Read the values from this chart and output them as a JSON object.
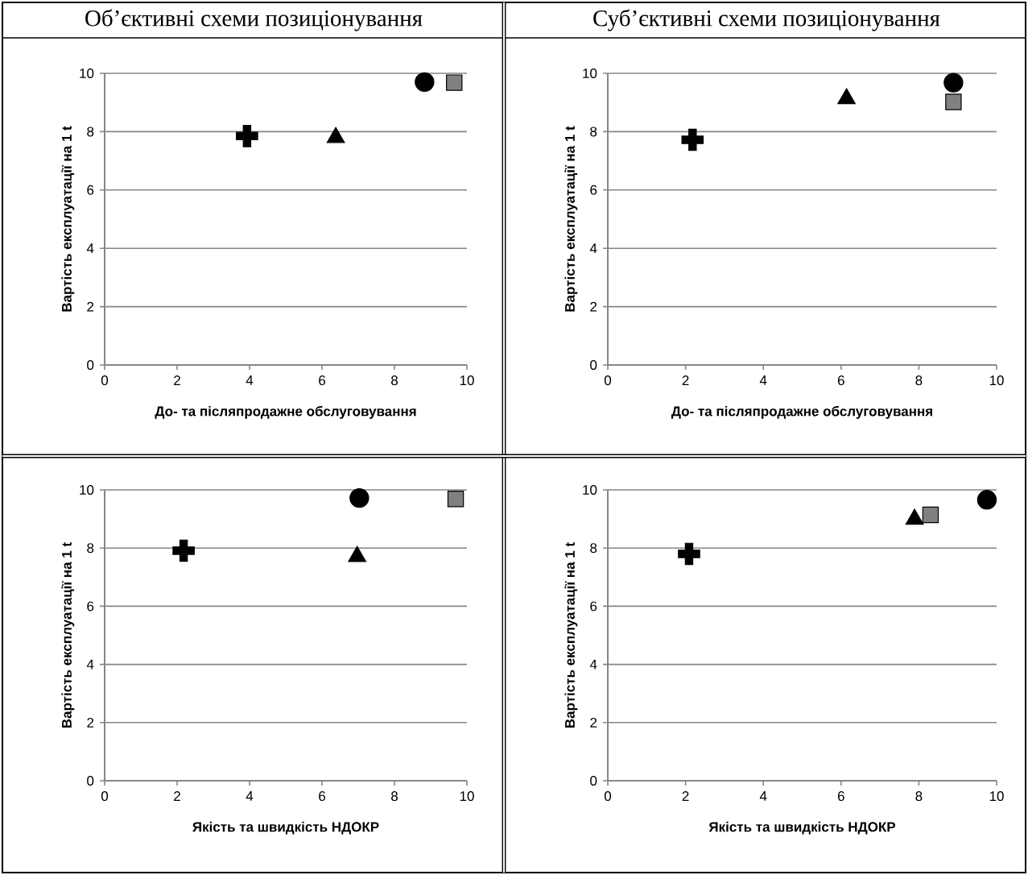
{
  "chart_data": [
    {
      "type": "scatter",
      "title": "Об’єктивні схеми позиціонування",
      "xlabel": "До- та післяпродажне обслуговування",
      "ylabel": "Вартість експлуатації на 1 t",
      "xlim": [
        0,
        10
      ],
      "ylim": [
        0,
        10
      ],
      "xticks": [
        0,
        2,
        4,
        6,
        8,
        10
      ],
      "yticks": [
        0,
        2,
        4,
        6,
        8,
        10
      ],
      "grid": "y",
      "series": [
        {
          "color": "#000000",
          "marker": "cross",
          "x": [
            3.93
          ],
          "values": [
            7.85
          ]
        },
        {
          "color": "#000000",
          "marker": "triangle",
          "x": [
            6.38
          ],
          "values": [
            7.8
          ]
        },
        {
          "color": "#000000",
          "marker": "circle",
          "x": [
            8.83
          ],
          "values": [
            9.7
          ]
        },
        {
          "color": "#808080",
          "marker": "square",
          "x": [
            9.65
          ],
          "values": [
            9.68
          ]
        }
      ]
    },
    {
      "type": "scatter",
      "title": "Суб’єктивні схеми позиціонування",
      "xlabel": "До- та післяпродажне обслуговування",
      "ylabel": "Вартість експлуатації на 1 t",
      "xlim": [
        0,
        10
      ],
      "ylim": [
        0,
        10
      ],
      "xticks": [
        0,
        2,
        4,
        6,
        8,
        10
      ],
      "yticks": [
        0,
        2,
        4,
        6,
        8,
        10
      ],
      "grid": "y",
      "series": [
        {
          "color": "#000000",
          "marker": "cross",
          "x": [
            2.18
          ],
          "values": [
            7.72
          ]
        },
        {
          "color": "#000000",
          "marker": "triangle",
          "x": [
            6.14
          ],
          "values": [
            9.13
          ]
        },
        {
          "color": "#000000",
          "marker": "circle",
          "x": [
            8.89
          ],
          "values": [
            9.68
          ]
        },
        {
          "color": "#808080",
          "marker": "square",
          "x": [
            8.89
          ],
          "values": [
            9.02
          ]
        }
      ]
    },
    {
      "type": "scatter",
      "xlabel": "Якість та швидкість НДОКР",
      "ylabel": "Вартість експлуатації на 1 t",
      "xlim": [
        0,
        10
      ],
      "ylim": [
        0,
        10
      ],
      "xticks": [
        0,
        2,
        4,
        6,
        8,
        10
      ],
      "yticks": [
        0,
        2,
        4,
        6,
        8,
        10
      ],
      "grid": "y",
      "series": [
        {
          "color": "#000000",
          "marker": "cross",
          "x": [
            2.18
          ],
          "values": [
            7.91
          ]
        },
        {
          "color": "#000000",
          "marker": "triangle",
          "x": [
            6.97
          ],
          "values": [
            7.71
          ]
        },
        {
          "color": "#000000",
          "marker": "circle",
          "x": [
            7.03
          ],
          "values": [
            9.72
          ]
        },
        {
          "color": "#808080",
          "marker": "square",
          "x": [
            9.69
          ],
          "values": [
            9.69
          ]
        }
      ]
    },
    {
      "type": "scatter",
      "xlabel": "Якість та швидкість НДОКР",
      "ylabel": "Вартість експлуатації на 1 t",
      "xlim": [
        0,
        10
      ],
      "ylim": [
        0,
        10
      ],
      "xticks": [
        0,
        2,
        4,
        6,
        8,
        10
      ],
      "yticks": [
        0,
        2,
        4,
        6,
        8,
        10
      ],
      "grid": "y",
      "series": [
        {
          "color": "#000000",
          "marker": "cross",
          "x": [
            2.09
          ],
          "values": [
            7.8
          ]
        },
        {
          "color": "#000000",
          "marker": "triangle",
          "x": [
            7.89
          ],
          "values": [
            8.99
          ]
        },
        {
          "color": "#808080",
          "marker": "square",
          "x": [
            8.3
          ],
          "values": [
            9.14
          ]
        },
        {
          "color": "#000000",
          "marker": "circle",
          "x": [
            9.75
          ],
          "values": [
            9.66
          ]
        }
      ]
    }
  ]
}
